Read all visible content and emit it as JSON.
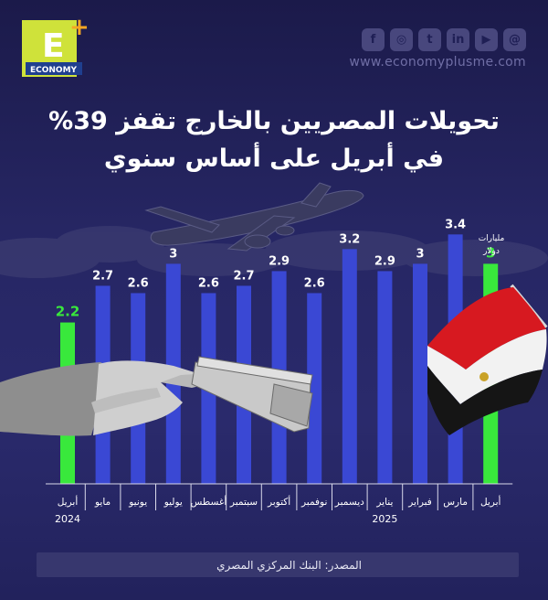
{
  "brand": {
    "logo_letter": "E",
    "logo_text": "ECONOMY",
    "logo_plus": "+",
    "website": "www.economyplusme.com",
    "social_icons": [
      "facebook-icon",
      "instagram-icon",
      "twitter-icon",
      "linkedin-icon",
      "youtube-icon",
      "threads-icon"
    ]
  },
  "headline": {
    "line1": "تحويلات المصريين بالخارج تقفز 39%",
    "line2": "في أبريل على أساس سنوي"
  },
  "chart_data": {
    "type": "bar",
    "categories": [
      "أبريل",
      "مايو",
      "يونيو",
      "يوليو",
      "أغسطس",
      "سبتمبر",
      "أكتوبر",
      "نوفمبر",
      "ديسمبر",
      "يناير",
      "فبراير",
      "مارس",
      "أبريل"
    ],
    "values": [
      2.2,
      2.7,
      2.6,
      3,
      2.6,
      2.7,
      2.9,
      2.6,
      3.2,
      2.9,
      3,
      3.4,
      3
    ],
    "year_labels": [
      {
        "index": 0,
        "text": "2024"
      },
      {
        "index": 9,
        "text": "2025"
      }
    ],
    "highlight_indices": [
      0,
      12
    ],
    "unit_label": [
      "مليارات",
      "دولار"
    ],
    "colors": {
      "bar": "#3a48d4",
      "highlight": "#39e83c",
      "axis": "#d9d9ea"
    },
    "value_axis_visible": false,
    "grid": false,
    "order": "right-to-left"
  },
  "source": "المصدر: البنك المركزي المصري"
}
